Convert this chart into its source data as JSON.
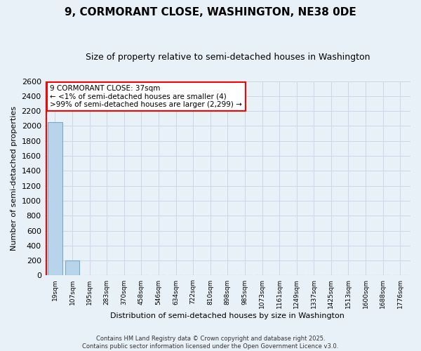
{
  "title": "9, CORMORANT CLOSE, WASHINGTON, NE38 0DE",
  "subtitle": "Size of property relative to semi-detached houses in Washington",
  "xlabel": "Distribution of semi-detached houses by size in Washington",
  "ylabel": "Number of semi-detached properties",
  "annotation_lines": [
    "9 CORMORANT CLOSE: 37sqm",
    "← <1% of semi-detached houses are smaller (4)",
    ">99% of semi-detached houses are larger (2,299) →"
  ],
  "categories": [
    "19sqm",
    "107sqm",
    "195sqm",
    "283sqm",
    "370sqm",
    "458sqm",
    "546sqm",
    "634sqm",
    "722sqm",
    "810sqm",
    "898sqm",
    "985sqm",
    "1073sqm",
    "1161sqm",
    "1249sqm",
    "1337sqm",
    "1425sqm",
    "1513sqm",
    "1600sqm",
    "1688sqm",
    "1776sqm"
  ],
  "values": [
    2050,
    200,
    0,
    0,
    0,
    0,
    0,
    0,
    0,
    0,
    0,
    0,
    0,
    0,
    0,
    0,
    0,
    0,
    0,
    0,
    0
  ],
  "highlight_bar_color": "#b8d4ea",
  "normal_bar_color": "#ddeeff",
  "red_line_x": -0.5,
  "ylim": [
    0,
    2600
  ],
  "yticks": [
    0,
    200,
    400,
    600,
    800,
    1000,
    1200,
    1400,
    1600,
    1800,
    2000,
    2200,
    2400,
    2600
  ],
  "grid_color": "#c8d8e8",
  "background_color": "#e8f0f8",
  "title_fontsize": 11,
  "subtitle_fontsize": 9,
  "footer_line1": "Contains HM Land Registry data © Crown copyright and database right 2025.",
  "footer_line2": "Contains public sector information licensed under the Open Government Licence v3.0."
}
